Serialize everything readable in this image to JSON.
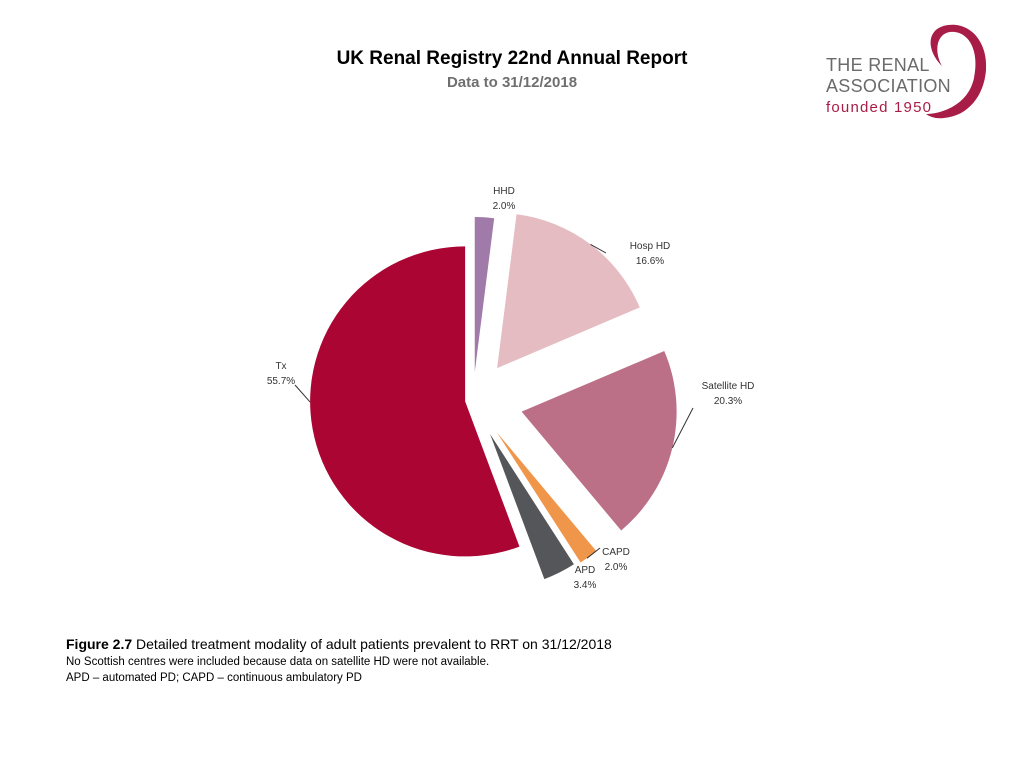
{
  "header": {
    "title": "UK Renal Registry 22nd Annual Report",
    "subtitle": "Data to 31/12/2018"
  },
  "logo": {
    "line1": "THE RENAL",
    "line2": "ASSOCIATION",
    "line3": "founded 1950",
    "color": "#a81d48"
  },
  "chart_data": {
    "type": "pie",
    "title": "",
    "slices": [
      {
        "name": "HHD",
        "value": 2.0,
        "label": "2.0%",
        "color": "#a07aa8"
      },
      {
        "name": "Hosp HD",
        "value": 16.6,
        "label": "16.6%",
        "color": "#e6bcc3"
      },
      {
        "name": "Satellite HD",
        "value": 20.3,
        "label": "20.3%",
        "color": "#bc7088"
      },
      {
        "name": "CAPD",
        "value": 2.0,
        "label": "2.0%",
        "color": "#f0964a"
      },
      {
        "name": "APD",
        "value": 3.4,
        "label": "3.4%",
        "color": "#55565a"
      },
      {
        "name": "Tx",
        "value": 55.7,
        "label": "55.7%",
        "color": "#ab0533"
      }
    ],
    "exploded": true
  },
  "caption": {
    "figure_number": "Figure 2.7",
    "text": "Detailed treatment modality of adult patients prevalent to RRT on 31/12/2018",
    "note1": "No Scottish centres were included because data on satellite HD were not available.",
    "note2": "APD – automated PD; CAPD – continuous ambulatory PD"
  }
}
